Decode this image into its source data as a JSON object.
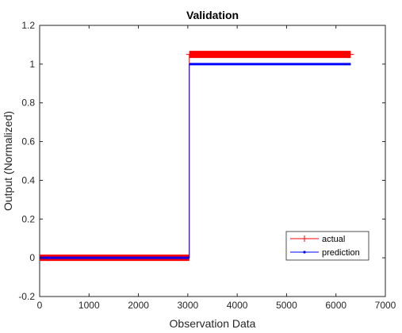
{
  "chart_data": {
    "type": "line",
    "title": "Validation",
    "xlabel": "Observation Data",
    "ylabel": "Output (Normalized)",
    "xlim": [
      0,
      7000
    ],
    "ylim": [
      -0.2,
      1.2
    ],
    "xticks": [
      0,
      1000,
      2000,
      3000,
      4000,
      5000,
      6000,
      7000
    ],
    "yticks": [
      -0.2,
      0,
      0.2,
      0.4,
      0.6,
      0.8,
      1,
      1.2
    ],
    "xtick_labels": [
      "0",
      "1000",
      "2000",
      "3000",
      "4000",
      "5000",
      "6000",
      "7000"
    ],
    "ytick_labels": [
      "-0.2",
      "0",
      "0.2",
      "0.4",
      "0.6",
      "0.8",
      "1",
      "1.2"
    ],
    "grid": false,
    "legend_position": "bottom-right",
    "series": [
      {
        "name": "actual",
        "color": "#ff0000",
        "marker": "plus",
        "x": [
          0,
          3030,
          3030,
          6300
        ],
        "y": [
          0,
          0,
          1.05,
          1.05
        ]
      },
      {
        "name": "prediction",
        "color": "#0000ff",
        "marker": "dot",
        "x": [
          0,
          3030,
          3030,
          6300
        ],
        "y": [
          0,
          0,
          1.0,
          1.0
        ]
      }
    ]
  }
}
